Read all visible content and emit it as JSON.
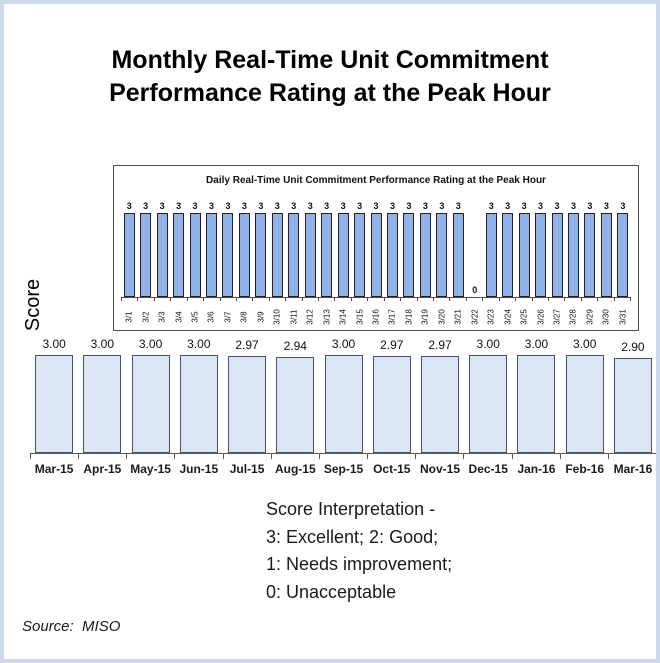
{
  "title": {
    "line1": "Monthly Real-Time Unit Commitment",
    "line2": "Performance Rating at the Peak Hour"
  },
  "y_axis_label": "Score",
  "chart_data": [
    {
      "id": "monthly",
      "type": "bar",
      "title": "Monthly Real-Time Unit Commitment Performance Rating at the Peak Hour",
      "categories": [
        "Mar-15",
        "Apr-15",
        "May-15",
        "Jun-15",
        "Jul-15",
        "Aug-15",
        "Sep-15",
        "Oct-15",
        "Nov-15",
        "Dec-15",
        "Jan-16",
        "Feb-16",
        "Mar-16"
      ],
      "values": [
        3.0,
        3.0,
        3.0,
        3.0,
        2.97,
        2.94,
        3.0,
        2.97,
        2.97,
        3.0,
        3.0,
        3.0,
        2.9
      ],
      "value_labels": [
        "3.00",
        "3.00",
        "3.00",
        "3.00",
        "2.97",
        "2.94",
        "3.00",
        "2.97",
        "2.97",
        "3.00",
        "3.00",
        "3.00",
        "2.90"
      ],
      "xlabel": "",
      "ylabel": "Score",
      "ylim": [
        0,
        3
      ],
      "grid": false,
      "legend": "none",
      "bar_fill": "#dbe5f3",
      "bar_border": "#44546a"
    },
    {
      "id": "daily",
      "type": "bar",
      "title": "Daily Real-Time Unit Commitment Performance Rating at the Peak Hour",
      "categories": [
        "3/1",
        "3/2",
        "3/3",
        "3/4",
        "3/5",
        "3/6",
        "3/7",
        "3/8",
        "3/9",
        "3/10",
        "3/11",
        "3/12",
        "3/13",
        "3/14",
        "3/15",
        "3/16",
        "3/17",
        "3/18",
        "3/19",
        "3/20",
        "3/21",
        "3/22",
        "3/23",
        "3/24",
        "3/25",
        "3/26",
        "3/27",
        "3/28",
        "3/29",
        "3/30",
        "3/31"
      ],
      "values": [
        3,
        3,
        3,
        3,
        3,
        3,
        3,
        3,
        3,
        3,
        3,
        3,
        3,
        3,
        3,
        3,
        3,
        3,
        3,
        3,
        3,
        0,
        3,
        3,
        3,
        3,
        3,
        3,
        3,
        3,
        3
      ],
      "value_labels": [
        "3",
        "3",
        "3",
        "3",
        "3",
        "3",
        "3",
        "3",
        "3",
        "3",
        "3",
        "3",
        "3",
        "3",
        "3",
        "3",
        "3",
        "3",
        "3",
        "3",
        "3",
        "0",
        "3",
        "3",
        "3",
        "3",
        "3",
        "3",
        "3",
        "3",
        "3"
      ],
      "xlabel": "",
      "ylabel": "",
      "ylim": [
        0,
        3
      ],
      "grid": false,
      "legend": "none",
      "bar_fill": "#8fb3e6",
      "bar_border": "#2d1b22"
    }
  ],
  "interpretation": {
    "line1": "Score Interpretation -",
    "line2": "3: Excellent; 2: Good;",
    "line3": "1: Needs improvement;",
    "line4": "0: Unacceptable"
  },
  "source": "Source:  MISO"
}
